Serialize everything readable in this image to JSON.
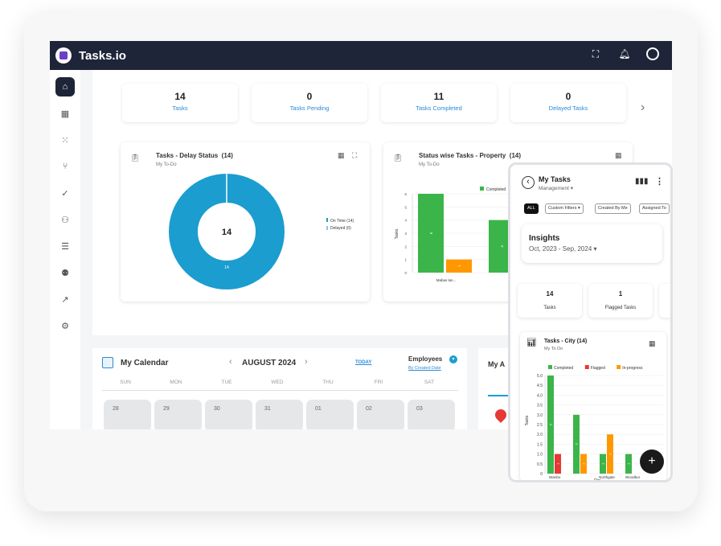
{
  "app": {
    "brand": "Tasks.io"
  },
  "stats": [
    {
      "num": "14",
      "label": "Tasks"
    },
    {
      "num": "0",
      "label": "Tasks Pending"
    },
    {
      "num": "11",
      "label": "Tasks Completed"
    },
    {
      "num": "0",
      "label": "Delayed Tasks"
    }
  ],
  "delay_card": {
    "title": "Tasks - Delay Status",
    "count": "(14)",
    "sub": "My To-Do",
    "center": "14",
    "slice_label": "14",
    "legend": [
      "On Time (14)",
      "Delayed (0)"
    ]
  },
  "property_card": {
    "title": "Status wise Tasks - Property",
    "count": "(14)",
    "sub": "My To-Do",
    "legend": "Completed",
    "ylabel": "Tasks",
    "yticks": [
      "6",
      "5",
      "4",
      "3",
      "2",
      "1",
      "0"
    ],
    "bar_labels": [
      "6",
      "1",
      "4"
    ],
    "xcat": "Mabas lan..."
  },
  "calendar": {
    "title": "My Calendar",
    "month": "AUGUST 2024",
    "today": "TODAY",
    "employees": "Employees",
    "sort": "By Created Date",
    "days": [
      "SUN",
      "MON",
      "TUE",
      "WED",
      "THU",
      "FRI",
      "SAT"
    ],
    "dates": [
      "28",
      "29",
      "30",
      "31",
      "01",
      "02",
      "03"
    ]
  },
  "mya": {
    "title": "My A"
  },
  "phone": {
    "title": "My Tasks",
    "subtitle": "Management",
    "chips": [
      "ALL",
      "Custom Filters",
      "Created By Me",
      "Assigned To"
    ],
    "insights": {
      "title": "Insights",
      "range": "Oct, 2023 - Sep, 2024"
    },
    "stats": [
      {
        "num": "14",
        "label": "Tasks"
      },
      {
        "num": "1",
        "label": "Flagged Tasks"
      }
    ],
    "chart_title": "Tasks - City (14)",
    "chart_sub": "My To Do",
    "xlabel": "City",
    "ylabel": "Tasks",
    "xcats": [
      "Istanbu",
      "Northgate",
      "Woodbur"
    ]
  },
  "chart_data": [
    {
      "type": "pie",
      "title": "Tasks - Delay Status (14)",
      "labels": [
        "On Time",
        "Delayed"
      ],
      "values": [
        14,
        0
      ],
      "colors": [
        "#1b9dd0",
        "#7fc8e8"
      ]
    },
    {
      "type": "bar",
      "title": "Status wise Tasks - Property (14)",
      "ylabel": "Tasks",
      "ylim": [
        0,
        6
      ],
      "categories": [
        "Mabas lan...",
        "P"
      ],
      "series": [
        {
          "name": "Completed",
          "color": "#3bb54a",
          "values": [
            6,
            4
          ]
        },
        {
          "name": "",
          "color": "#ff9800",
          "values": [
            1,
            0
          ]
        }
      ]
    },
    {
      "type": "bar",
      "title": "Tasks - City (14)",
      "xlabel": "City",
      "ylabel": "Tasks",
      "ylim": [
        0,
        5
      ],
      "yticks": [
        "5.0",
        "4.5",
        "4.0",
        "3.5",
        "3.0",
        "2.5",
        "2.0",
        "1.5",
        "1.0",
        "0.5",
        "0"
      ],
      "groups": [
        {
          "x": "Istanbu",
          "bars": [
            {
              "s": "Completed",
              "v": 5
            },
            {
              "s": "Flagged",
              "v": 1
            }
          ]
        },
        {
          "x": "",
          "bars": [
            {
              "s": "Completed",
              "v": 3
            },
            {
              "s": "In-progress",
              "v": 1
            }
          ]
        },
        {
          "x": "Northgate",
          "bars": [
            {
              "s": "Completed",
              "v": 1
            },
            {
              "s": "In-progress",
              "v": 2
            }
          ]
        },
        {
          "x": "Woodbur",
          "bars": [
            {
              "s": "Completed",
              "v": 1
            }
          ]
        }
      ],
      "series": [
        {
          "name": "Completed",
          "color": "#3bb54a"
        },
        {
          "name": "Flagged",
          "color": "#e53935"
        },
        {
          "name": "In-progress",
          "color": "#ff9800"
        }
      ]
    }
  ]
}
